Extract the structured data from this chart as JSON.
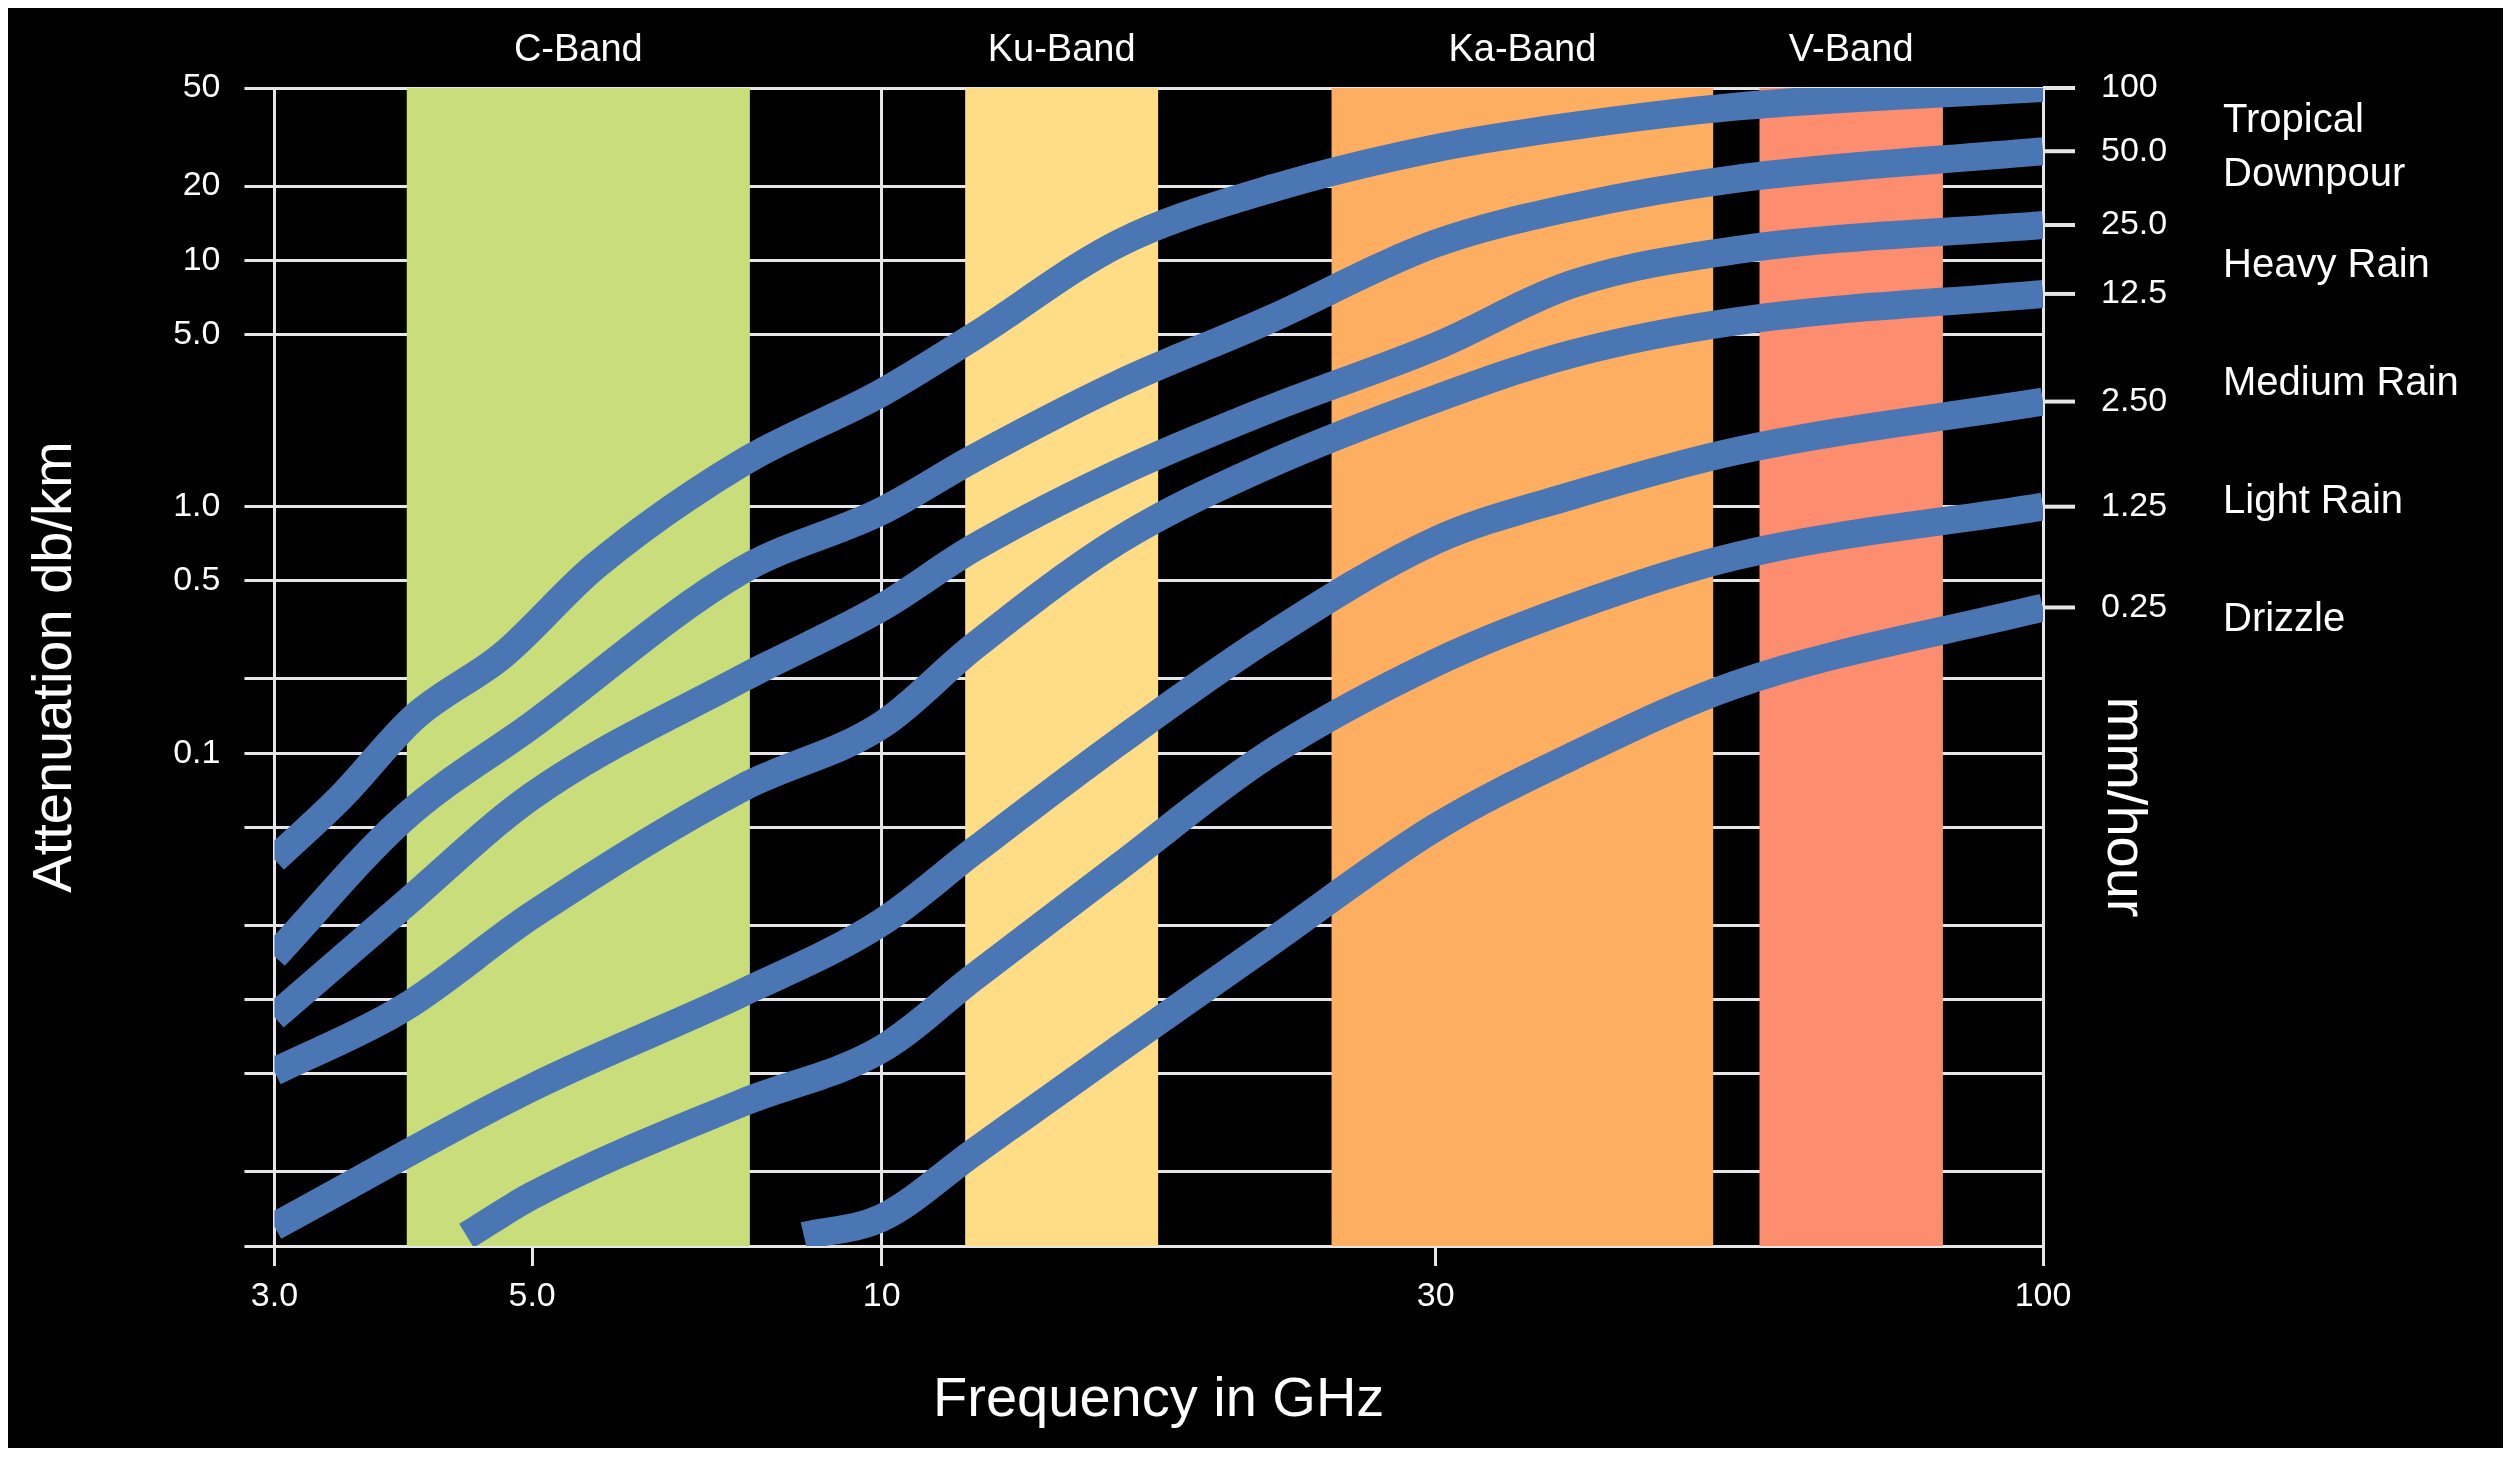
{
  "chart_data": {
    "type": "line",
    "xlabel": "Frequency in GHz",
    "ylabel": "Attenuation db/km",
    "y2label": "mm/hour",
    "log": "xy",
    "grid": true,
    "legend": false,
    "line_style": "solid",
    "xlim": [
      3,
      100
    ],
    "xticks": [
      {
        "value": 3,
        "label": "3.0"
      },
      {
        "value": 5,
        "label": "5.0"
      },
      10,
      30,
      100
    ],
    "ylim": [
      0.001,
      50
    ],
    "yticks": [
      {
        "value": 0.001,
        "label": null
      },
      {
        "value": 0.002,
        "label": null
      },
      {
        "value": 0.005,
        "label": null
      },
      {
        "value": 0.01,
        "label": null
      },
      {
        "value": 0.02,
        "label": null
      },
      {
        "value": 0.05,
        "label": null
      },
      0.1,
      {
        "value": 0.2,
        "label": null
      },
      0.5,
      {
        "value": 1,
        "label": "1.0"
      },
      {
        "value": 5,
        "label": "5.0"
      },
      10,
      20,
      50
    ],
    "bands": [
      {
        "axis": "x",
        "from": 3.9,
        "to": 7.7,
        "label": "C-Band",
        "color": "#c9dd7a"
      },
      {
        "axis": "x",
        "from": 11.8,
        "to": 17.3,
        "label": "Ku-Band",
        "color": "#fedd86"
      },
      {
        "axis": "x",
        "from": 24.4,
        "to": 52,
        "label": "Ka-Band",
        "color": "#fdae61"
      },
      {
        "axis": "x",
        "from": 57,
        "to": 82,
        "label": "V-Band",
        "color": "#fc8d6f"
      }
    ],
    "series": [
      {
        "name": "100",
        "color": "#4a76b4",
        "x": [
          3,
          3.43,
          3.96,
          4.72,
          5.66,
          7.57,
          10,
          12,
          16,
          21.4,
          30,
          39.3,
          54.4,
          100
        ],
        "values": [
          0.037,
          0.067,
          0.14,
          0.25,
          0.57,
          1.5,
          2.9,
          4.9,
          11.7,
          19.2,
          28.5,
          35,
          42,
          50
        ]
      },
      {
        "name": "50.0",
        "color": "#4a76b4",
        "x": [
          3,
          3.87,
          5,
          7.57,
          10,
          12,
          16,
          21.4,
          30,
          39.3,
          54.4,
          100
        ],
        "values": [
          0.015,
          0.054,
          0.13,
          0.55,
          0.96,
          1.57,
          3.15,
          5.65,
          11.7,
          16.4,
          21.4,
          27.7
        ]
      },
      {
        "name": "25.0",
        "color": "#4a76b4",
        "x": [
          3,
          3.87,
          5,
          7.57,
          10,
          12,
          16,
          21.4,
          30,
          39.3,
          54.4,
          100
        ],
        "values": [
          0.0085,
          0.024,
          0.067,
          0.2,
          0.39,
          0.68,
          1.37,
          2.45,
          4.47,
          8,
          11,
          13.9
        ]
      },
      {
        "name": "12.5",
        "color": "#4a76b4",
        "x": [
          3,
          3.87,
          5,
          7.57,
          10,
          12,
          16,
          21.4,
          30,
          39.3,
          54.4,
          100
        ],
        "values": [
          0.0051,
          0.0092,
          0.022,
          0.072,
          0.13,
          0.27,
          0.73,
          1.46,
          2.74,
          4.17,
          5.65,
          7.3
        ]
      },
      {
        "name": "2.50",
        "color": "#4a76b4",
        "x": [
          3,
          5,
          7.57,
          10,
          12,
          16,
          21.4,
          30,
          39.3,
          54.4,
          100
        ],
        "values": [
          0.0012,
          0.0044,
          0.0106,
          0.0206,
          0.04,
          0.111,
          0.29,
          0.73,
          1.11,
          1.68,
          2.67
        ]
      },
      {
        "name": "1.25",
        "color": "#4a76b4",
        "x": [
          4.39,
          5,
          7.57,
          10,
          12,
          16,
          21.4,
          30,
          39.3,
          54.4,
          100
        ],
        "values": [
          0.0011,
          0.0016,
          0.0038,
          0.0063,
          0.0123,
          0.0345,
          0.097,
          0.233,
          0.39,
          0.63,
          1
        ]
      },
      {
        "name": "0.25",
        "color": "#4a76b4",
        "x": [
          8.57,
          10,
          12,
          16,
          21.4,
          30,
          39.3,
          54.4,
          100
        ],
        "values": [
          0.0011,
          0.0013,
          0.0024,
          0.0063,
          0.0165,
          0.05,
          0.097,
          0.19,
          0.39
        ]
      }
    ],
    "annotations": [
      "Tropical Downpour",
      "Heavy Rain",
      "Medium Rain",
      "Light Rain",
      "Drizzle"
    ]
  }
}
